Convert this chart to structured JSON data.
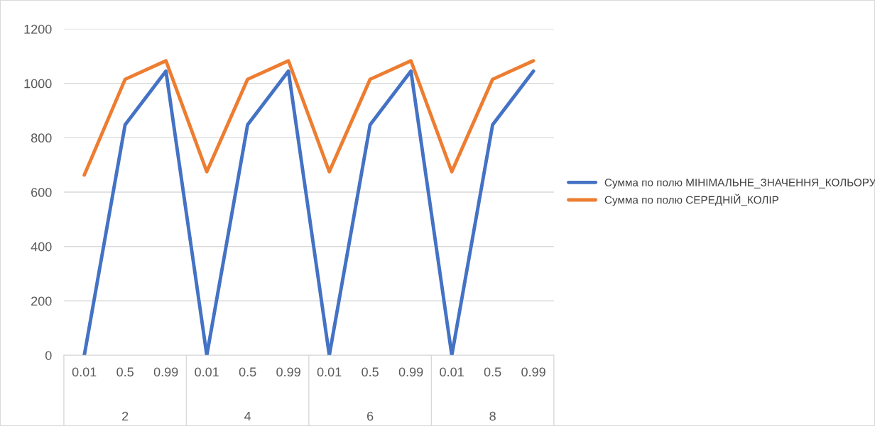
{
  "chart_data": {
    "type": "line",
    "categories": [
      "0.01",
      "0.5",
      "0.99",
      "0.01",
      "0.5",
      "0.99",
      "0.01",
      "0.5",
      "0.99",
      "0.01",
      "0.5",
      "0.99"
    ],
    "series": [
      {
        "name": "Сумма по полю МІНІМАЛЬНЕ_ЗНАЧЕННЯ_КОЛЬОРУ",
        "color": "#4472c4",
        "values": [
          0,
          848,
          1045,
          0,
          848,
          1045,
          0,
          848,
          1045,
          0,
          848,
          1045
        ]
      },
      {
        "name": "Сумма по полю СЕРЕДНІЙ_КОЛІР",
        "color": "#ed7d31",
        "values": [
          663,
          1015,
          1083,
          675,
          1015,
          1083,
          675,
          1015,
          1083,
          675,
          1015,
          1083
        ]
      }
    ],
    "annotations": [
      "2",
      "4",
      "6",
      "8"
    ],
    "ylim": [
      0,
      1200
    ],
    "yticks": [
      0,
      200,
      400,
      600,
      800,
      1000,
      1200
    ],
    "grid": "y",
    "legend": "right",
    "marker": "none",
    "line_style": "solid"
  }
}
